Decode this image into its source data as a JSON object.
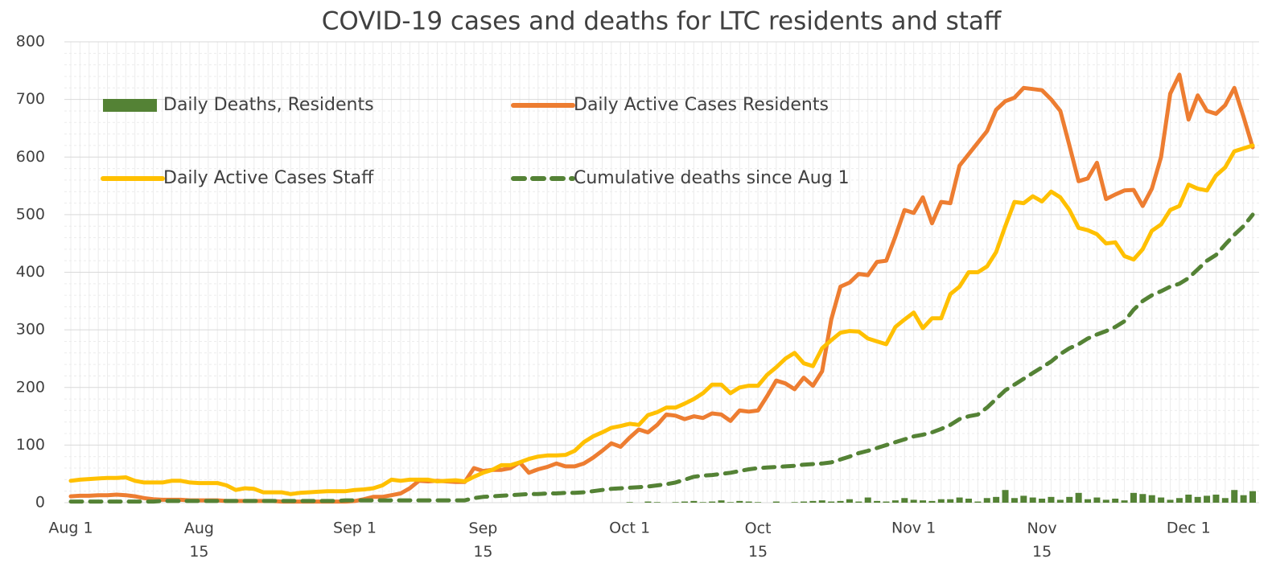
{
  "chart_data": {
    "type": "combo",
    "title": "COVID-19 cases and deaths for LTC residents and staff",
    "categories": [
      "Aug 1",
      null,
      null,
      null,
      null,
      null,
      null,
      null,
      null,
      null,
      null,
      null,
      null,
      null,
      "Aug 15",
      null,
      null,
      null,
      null,
      null,
      null,
      null,
      null,
      null,
      null,
      null,
      null,
      null,
      null,
      null,
      null,
      "Sep 1",
      null,
      null,
      null,
      null,
      null,
      null,
      null,
      null,
      null,
      null,
      null,
      null,
      null,
      "Sep 15",
      null,
      null,
      null,
      null,
      null,
      null,
      null,
      null,
      null,
      null,
      null,
      null,
      null,
      null,
      null,
      "Oct 1",
      null,
      null,
      null,
      null,
      null,
      null,
      null,
      null,
      null,
      null,
      null,
      null,
      null,
      "Oct 15",
      null,
      null,
      null,
      null,
      null,
      null,
      null,
      null,
      null,
      null,
      null,
      null,
      null,
      null,
      null,
      null,
      "Nov 1",
      null,
      null,
      null,
      null,
      null,
      null,
      null,
      null,
      null,
      null,
      null,
      null,
      null,
      "Nov 15",
      null,
      null,
      null,
      null,
      null,
      null,
      null,
      null,
      null,
      null,
      null,
      null,
      null,
      null,
      null,
      "Dec 1",
      null,
      null,
      null,
      null,
      null,
      null,
      null
    ],
    "series": [
      {
        "name": "Daily Deaths, Residents",
        "type": "bar",
        "color": "#548235",
        "values": [
          0,
          0,
          0,
          0,
          0,
          0,
          0,
          0,
          0,
          0,
          0,
          0,
          0,
          0,
          0,
          0,
          0,
          0,
          0,
          0,
          0,
          0,
          0,
          0,
          0,
          0,
          0,
          0,
          0,
          0,
          0,
          0,
          0,
          0,
          0,
          0,
          0,
          0,
          0,
          0,
          0,
          0,
          0,
          0,
          0,
          0,
          0,
          0,
          0,
          0,
          0,
          0,
          0,
          0,
          0,
          0,
          0,
          0,
          0,
          0,
          0,
          1,
          0,
          2,
          1,
          0,
          1,
          2,
          3,
          1,
          2,
          4,
          1,
          3,
          2,
          1,
          0,
          2,
          0,
          1,
          2,
          3,
          4,
          2,
          3,
          6,
          2,
          9,
          3,
          2,
          4,
          8,
          5,
          4,
          3,
          6,
          6,
          9,
          7,
          2,
          8,
          10,
          22,
          8,
          12,
          9,
          7,
          10,
          5,
          10,
          17,
          6,
          9,
          5,
          7,
          4,
          17,
          15,
          13,
          9,
          5,
          8,
          14,
          10,
          12,
          14,
          8,
          22,
          13,
          20
        ]
      },
      {
        "name": "Daily Active Cases Residents",
        "type": "line",
        "color": "#ed7d31",
        "values": [
          11,
          12,
          12,
          13,
          13,
          14,
          13,
          11,
          8,
          6,
          5,
          5,
          5,
          4,
          4,
          4,
          4,
          3,
          3,
          3,
          3,
          3,
          3,
          2,
          2,
          2,
          2,
          2,
          2,
          2,
          2,
          3,
          6,
          10,
          10,
          13,
          16,
          25,
          38,
          37,
          38,
          37,
          36,
          36,
          60,
          55,
          57,
          57,
          60,
          70,
          52,
          58,
          62,
          68,
          63,
          63,
          68,
          78,
          90,
          103,
          97,
          113,
          127,
          122,
          135,
          153,
          151,
          145,
          150,
          147,
          155,
          153,
          142,
          160,
          158,
          160,
          185,
          212,
          207,
          197,
          217,
          203,
          228,
          318,
          375,
          382,
          397,
          395,
          418,
          420,
          462,
          508,
          503,
          530,
          485,
          522,
          520,
          585,
          605,
          625,
          645,
          682,
          697,
          703,
          720,
          718,
          716,
          700,
          680,
          620,
          558,
          563,
          590,
          527,
          535,
          542,
          543,
          515,
          545,
          600,
          710,
          743,
          665,
          707,
          680,
          675,
          690,
          720,
          670,
          617
        ]
      },
      {
        "name": "Daily Active Cases Staff",
        "type": "line",
        "color": "#ffc000",
        "values": [
          38,
          40,
          41,
          42,
          43,
          43,
          44,
          38,
          35,
          35,
          35,
          38,
          38,
          35,
          34,
          34,
          34,
          30,
          22,
          25,
          24,
          18,
          18,
          18,
          15,
          17,
          18,
          19,
          20,
          20,
          20,
          22,
          23,
          25,
          30,
          40,
          38,
          40,
          40,
          40,
          37,
          38,
          39,
          37,
          45,
          52,
          57,
          65,
          65,
          70,
          76,
          80,
          82,
          82,
          83,
          90,
          105,
          115,
          122,
          130,
          133,
          137,
          135,
          152,
          157,
          165,
          165,
          172,
          180,
          190,
          205,
          205,
          190,
          200,
          203,
          203,
          222,
          235,
          250,
          260,
          242,
          237,
          268,
          282,
          295,
          298,
          297,
          285,
          280,
          275,
          305,
          318,
          330,
          303,
          320,
          320,
          362,
          375,
          400,
          400,
          410,
          435,
          480,
          522,
          520,
          532,
          523,
          540,
          530,
          508,
          477,
          473,
          466,
          450,
          452,
          428,
          422,
          440,
          472,
          483,
          508,
          515,
          552,
          545,
          542,
          568,
          582,
          610,
          615,
          620
        ]
      },
      {
        "name": "Cumulative deaths since Aug 1",
        "type": "line",
        "dashed": true,
        "color": "#548235",
        "values": [
          2,
          2,
          2,
          2,
          2,
          2,
          2,
          2,
          2,
          2,
          3,
          3,
          3,
          3,
          3,
          3,
          3,
          3,
          3,
          3,
          3,
          3,
          3,
          3,
          3,
          3,
          3,
          3,
          3,
          3,
          4,
          4,
          4,
          4,
          4,
          4,
          4,
          4,
          4,
          4,
          4,
          4,
          4,
          4,
          8,
          10,
          11,
          12,
          13,
          14,
          15,
          15,
          16,
          16,
          17,
          17,
          18,
          20,
          22,
          24,
          25,
          26,
          27,
          28,
          30,
          32,
          35,
          40,
          45,
          47,
          48,
          50,
          52,
          55,
          58,
          60,
          61,
          62,
          63,
          64,
          66,
          67,
          68,
          70,
          75,
          80,
          86,
          90,
          95,
          100,
          105,
          110,
          115,
          118,
          122,
          128,
          135,
          145,
          150,
          153,
          165,
          180,
          195,
          205,
          215,
          225,
          235,
          245,
          258,
          268,
          275,
          285,
          292,
          298,
          305,
          315,
          335,
          350,
          360,
          367,
          375,
          380,
          390,
          405,
          420,
          430,
          448,
          465,
          480,
          500
        ]
      }
    ],
    "ylim": [
      0,
      800
    ],
    "yticks": [
      0,
      100,
      200,
      300,
      400,
      500,
      600,
      700,
      800
    ],
    "grid": true,
    "legend": "upper left"
  }
}
